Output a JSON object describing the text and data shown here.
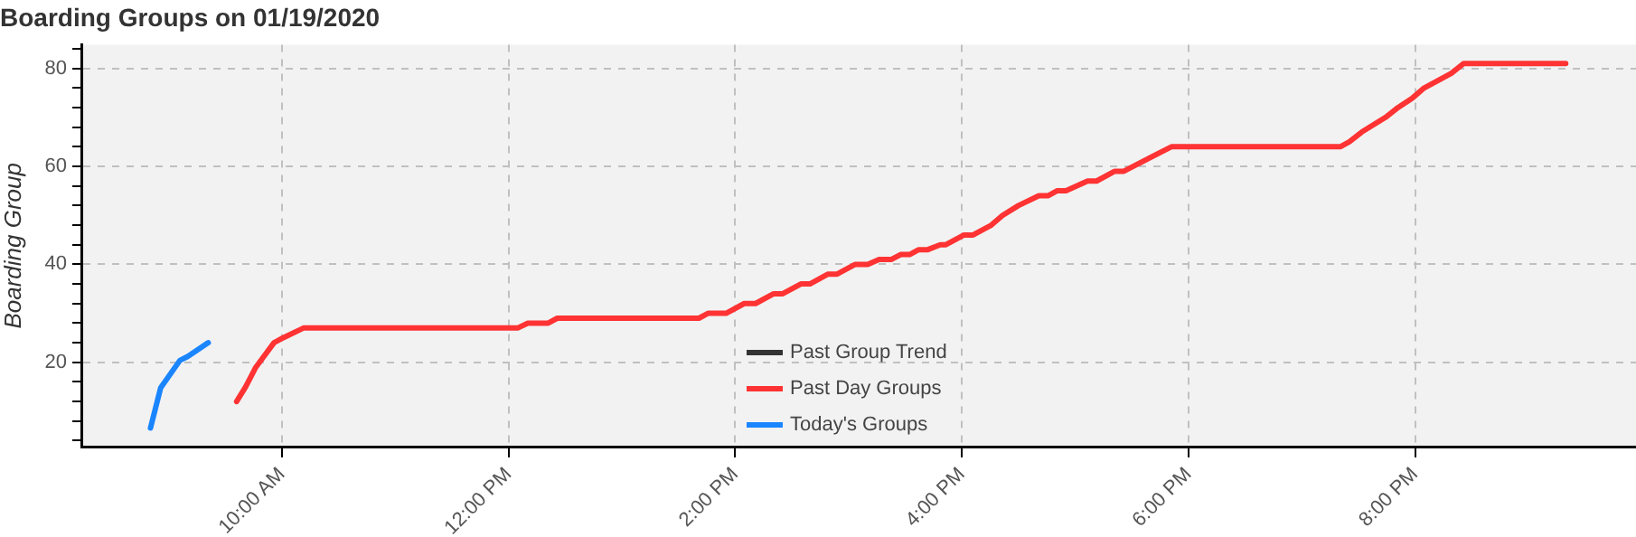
{
  "chart_data": {
    "type": "line",
    "title": "Boarding Groups on 01/19/2020",
    "ylabel": "Boarding Group",
    "xlim": [
      8.23,
      21.95
    ],
    "xticks": [
      {
        "value": 10,
        "label": "10:00 AM"
      },
      {
        "value": 12,
        "label": "12:00 PM"
      },
      {
        "value": 14,
        "label": "2:00 PM"
      },
      {
        "value": 16,
        "label": "4:00 PM"
      },
      {
        "value": 18,
        "label": "6:00 PM"
      },
      {
        "value": 20,
        "label": "8:00 PM"
      }
    ],
    "ylim": [
      2.8,
      84.8
    ],
    "yticks": [
      {
        "value": 4,
        "label": null
      },
      {
        "value": 8,
        "label": null
      },
      {
        "value": 12,
        "label": null
      },
      {
        "value": 16,
        "label": null
      },
      20,
      {
        "value": 24,
        "label": null
      },
      {
        "value": 28,
        "label": null
      },
      {
        "value": 32,
        "label": null
      },
      {
        "value": 36,
        "label": null
      },
      40,
      {
        "value": 44,
        "label": null
      },
      {
        "value": 48,
        "label": null
      },
      {
        "value": 52,
        "label": null
      },
      {
        "value": 56,
        "label": null
      },
      60,
      {
        "value": 64,
        "label": null
      },
      {
        "value": 68,
        "label": null
      },
      {
        "value": 72,
        "label": null
      },
      {
        "value": 76,
        "label": null
      },
      80,
      {
        "value": 84,
        "label": null
      }
    ],
    "grid": true,
    "legend": "bottom",
    "line_style": "solid",
    "marker": "none",
    "series": [
      {
        "name": "Past Group Trend",
        "color": "#333333"
      },
      {
        "name": "Past Day Groups",
        "color": "#ff3333",
        "x": [
          9.6,
          9.68,
          9.77,
          9.93,
          10.01,
          10.19,
          12.08,
          12.17,
          12.35,
          12.43,
          13.68,
          13.76,
          13.92,
          14.08,
          14.18,
          14.34,
          14.42,
          14.58,
          14.66,
          14.82,
          14.9,
          15.06,
          15.17,
          15.27,
          15.38,
          15.46,
          15.54,
          15.62,
          15.7,
          15.81,
          15.86,
          16.02,
          16.1,
          16.26,
          16.36,
          16.5,
          16.68,
          16.76,
          16.84,
          16.92,
          17.11,
          17.19,
          17.35,
          17.43,
          17.85,
          19.34,
          19.42,
          19.53,
          19.74,
          19.85,
          19.98,
          20.08,
          20.32,
          20.43,
          21.33
        ],
        "values": [
          12,
          15,
          19,
          24,
          25,
          27,
          27,
          28,
          28,
          29,
          29,
          30,
          30,
          32,
          32,
          34,
          34,
          36,
          36,
          38,
          38,
          40,
          40,
          41,
          41,
          42,
          42,
          43,
          43,
          44,
          44,
          46,
          46,
          48,
          50,
          52,
          54,
          54,
          55,
          55,
          57,
          57,
          59,
          59,
          64,
          64,
          65,
          67,
          70,
          72,
          74,
          76,
          79,
          81,
          81
        ]
      },
      {
        "name": "Today's Groups",
        "color": "#1a85ff",
        "x": [
          8.84,
          8.93,
          9.1,
          9.17,
          9.35
        ],
        "values": [
          6.6,
          14.8,
          20.4,
          21.2,
          24
        ]
      }
    ]
  }
}
